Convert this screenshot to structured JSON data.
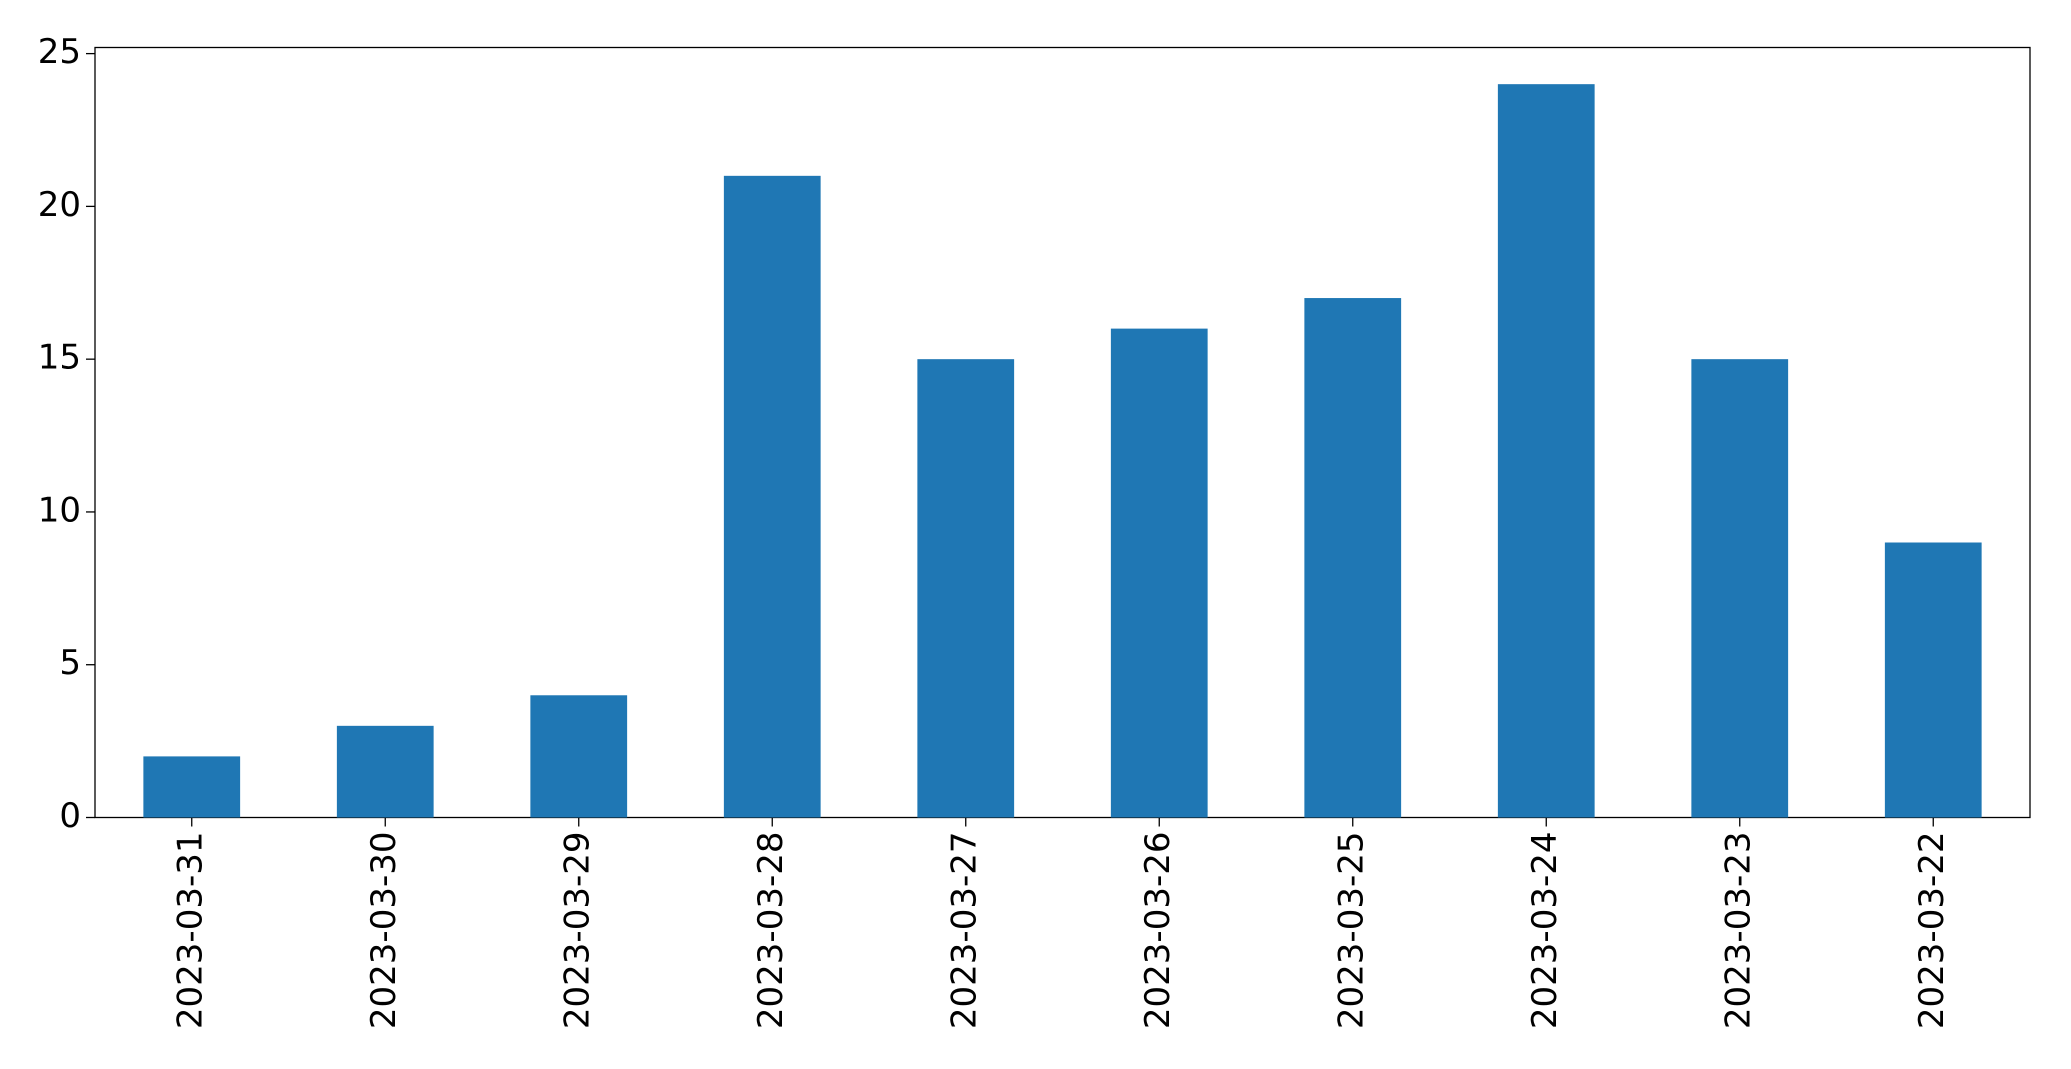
{
  "chart_data": {
    "type": "bar",
    "categories": [
      "2023-03-31",
      "2023-03-30",
      "2023-03-29",
      "2023-03-28",
      "2023-03-27",
      "2023-03-26",
      "2023-03-25",
      "2023-03-24",
      "2023-03-23",
      "2023-03-22"
    ],
    "values": [
      2,
      3,
      4,
      21,
      15,
      16,
      17,
      24,
      15,
      9
    ],
    "color": "#1f77b4",
    "ylim": [
      0,
      25.2
    ],
    "yticks": [
      0,
      5,
      10,
      15,
      20,
      25
    ],
    "grid": false
  }
}
